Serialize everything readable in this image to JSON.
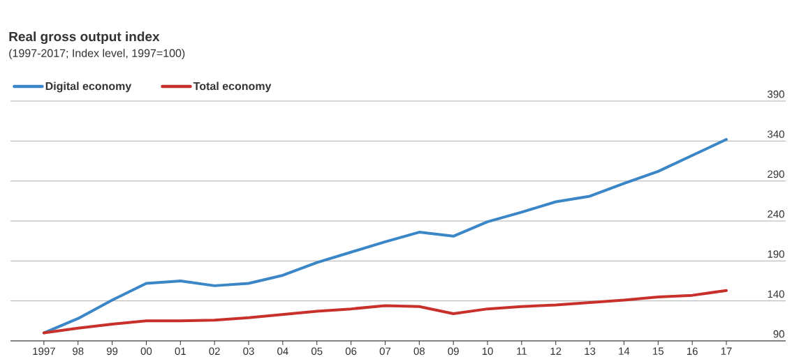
{
  "chart_data": {
    "type": "line",
    "title": "Real gross output index",
    "subtitle": "(1997-2017; Index level, 1997=100)",
    "categories": [
      "1997",
      "98",
      "99",
      "00",
      "01",
      "02",
      "03",
      "04",
      "05",
      "06",
      "07",
      "08",
      "09",
      "10",
      "11",
      "12",
      "13",
      "14",
      "15",
      "16",
      "17"
    ],
    "series": [
      {
        "name": "Digital economy",
        "color": "#3b86c6",
        "values": [
          100,
          118,
          141,
          162,
          165,
          159,
          162,
          172,
          188,
          201,
          214,
          226,
          221,
          239,
          251,
          264,
          271,
          287,
          302,
          322,
          342
        ]
      },
      {
        "name": "Total economy",
        "color": "#c8312b",
        "values": [
          100,
          106,
          111,
          115,
          115,
          116,
          119,
          123,
          127,
          130,
          134,
          133,
          124,
          130,
          133,
          135,
          138,
          141,
          145,
          147,
          153
        ]
      }
    ],
    "ylim": [
      90,
      390
    ],
    "yticks": [
      90,
      140,
      190,
      240,
      290,
      340,
      390
    ],
    "grid": "y",
    "legend": "top left",
    "marker": "none",
    "line_style": "solid"
  }
}
